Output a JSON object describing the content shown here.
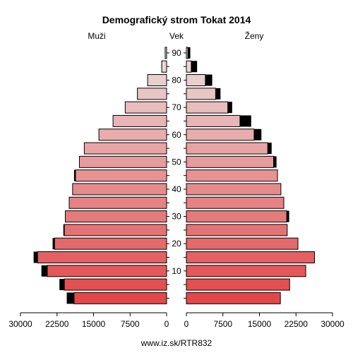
{
  "chart_data": {
    "type": "bar",
    "orientation": "horizontal",
    "title": "Demografický strom Tokat 2014",
    "left_label": "Muži",
    "center_label": "Vek",
    "right_label": "Ženy",
    "footer": "www.iz.sk/RTR832",
    "age_ticks": [
      "10",
      "20",
      "30",
      "40",
      "50",
      "60",
      "70",
      "80",
      "90"
    ],
    "x_ticks_left": [
      "30000",
      "22500",
      "15000",
      "7500",
      "0"
    ],
    "x_ticks_right": [
      "0",
      "7500",
      "15000",
      "22500",
      "30000"
    ],
    "xlim": [
      0,
      30000
    ],
    "age_groups": [
      "0-4",
      "5-9",
      "10-14",
      "15-19",
      "20-24",
      "25-29",
      "30-34",
      "35-39",
      "40-44",
      "45-49",
      "50-54",
      "55-59",
      "60-64",
      "65-69",
      "70-74",
      "75-79",
      "80-84",
      "85-89",
      "90+"
    ],
    "series": [
      {
        "name": "Muži",
        "values": [
          19000,
          21000,
          24500,
          26500,
          23000,
          21000,
          20800,
          20000,
          19300,
          18700,
          17900,
          16900,
          13900,
          11000,
          8500,
          6000,
          3900,
          1000,
          300
        ],
        "excess": [
          1500,
          1000,
          1200,
          800,
          400,
          200,
          0,
          0,
          0,
          300,
          0,
          0,
          0,
          0,
          0,
          0,
          0,
          0,
          0
        ]
      },
      {
        "name": "Ženy",
        "values": [
          19300,
          21200,
          24500,
          26300,
          22900,
          20700,
          20600,
          20000,
          19400,
          18700,
          17900,
          16700,
          13900,
          11000,
          8500,
          6000,
          3900,
          1000,
          300
        ],
        "excess": [
          0,
          0,
          0,
          0,
          0,
          0,
          500,
          0,
          0,
          0,
          600,
          800,
          1500,
          2300,
          900,
          1000,
          1400,
          1200,
          500
        ]
      }
    ]
  }
}
